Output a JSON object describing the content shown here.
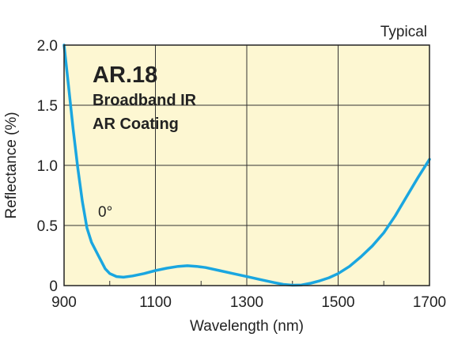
{
  "chart_data": {
    "type": "line",
    "title": "AR.18",
    "subtitle_lines": [
      "Broadband IR",
      "AR Coating"
    ],
    "corner_note": "Typical",
    "xlabel": "Wavelength (nm)",
    "ylabel": "Reflectance (%)",
    "xlim": [
      900,
      1700
    ],
    "ylim": [
      0,
      2.0
    ],
    "x_ticks": [
      900,
      1100,
      1300,
      1500,
      1700
    ],
    "x_tick_labels": [
      "900",
      "1100",
      "1300",
      "1500",
      "1700"
    ],
    "y_ticks": [
      0,
      0.5,
      1.0,
      1.5,
      2.0
    ],
    "y_tick_labels": [
      "0",
      "0.5",
      "1.0",
      "1.5",
      "2.0"
    ],
    "x_minor_gridlines": [
      1000,
      1200,
      1400,
      1600
    ],
    "grid": true,
    "colors": {
      "plot_background": "#fdf7d2",
      "line": "#1aa6e0",
      "grid": "#333333"
    },
    "series": [
      {
        "annotation": "0°",
        "x": [
          900,
          910,
          920,
          930,
          940,
          950,
          960,
          975,
          990,
          1000,
          1015,
          1030,
          1050,
          1075,
          1100,
          1125,
          1150,
          1170,
          1190,
          1210,
          1240,
          1270,
          1300,
          1330,
          1360,
          1380,
          1400,
          1420,
          1440,
          1460,
          1480,
          1500,
          1525,
          1550,
          1575,
          1600,
          1625,
          1650,
          1675,
          1700
        ],
        "y": [
          2.0,
          1.65,
          1.3,
          0.98,
          0.7,
          0.48,
          0.36,
          0.25,
          0.14,
          0.1,
          0.075,
          0.07,
          0.08,
          0.1,
          0.125,
          0.145,
          0.16,
          0.165,
          0.16,
          0.15,
          0.125,
          0.1,
          0.075,
          0.05,
          0.025,
          0.01,
          0.003,
          0.005,
          0.02,
          0.04,
          0.065,
          0.1,
          0.16,
          0.24,
          0.33,
          0.44,
          0.58,
          0.74,
          0.9,
          1.05
        ]
      }
    ]
  }
}
